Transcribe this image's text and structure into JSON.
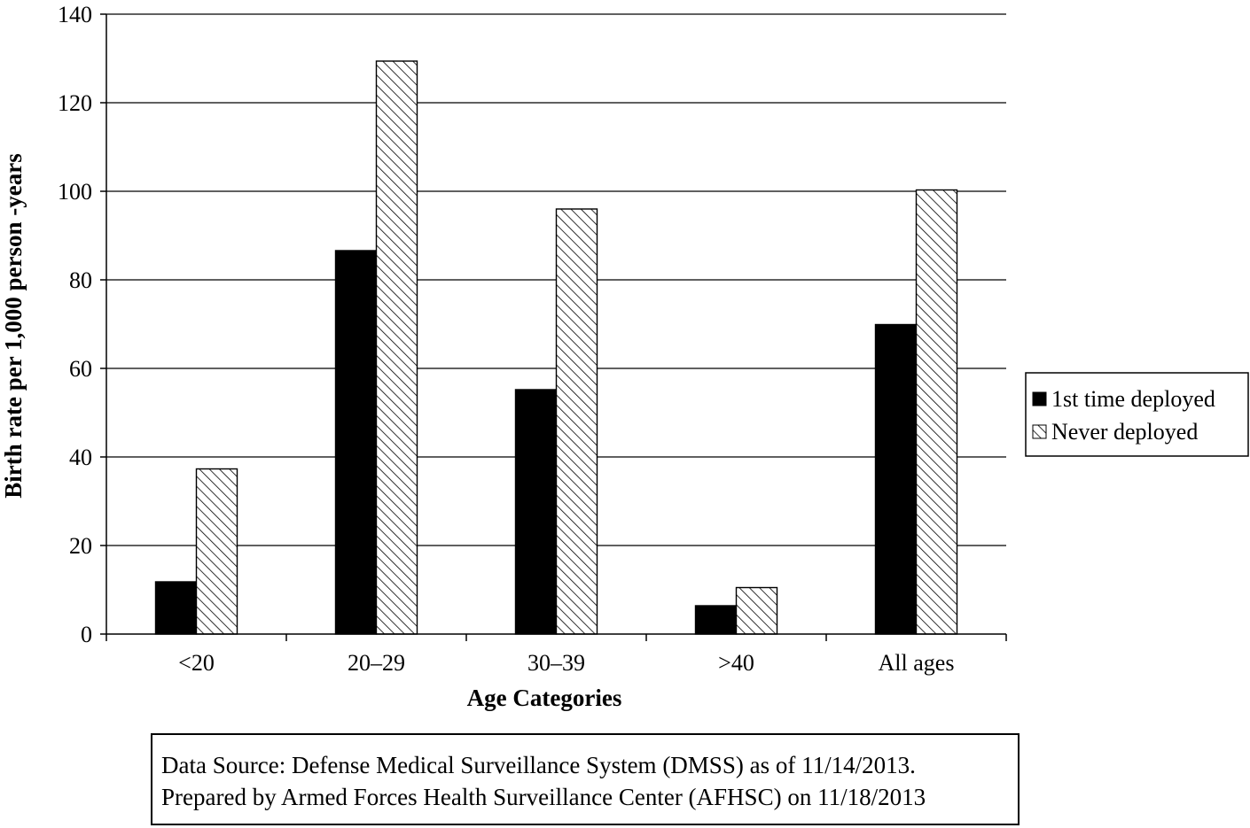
{
  "chart_data": {
    "type": "bar",
    "title": "",
    "xlabel": "Age Categories",
    "ylabel": "Birth rate per 1,000 person -years",
    "ylim": [
      0,
      140
    ],
    "yticks": [
      "0",
      "20",
      "40",
      "60",
      "80",
      "100",
      "120",
      "140"
    ],
    "grid": true,
    "legend_position": "right",
    "categories": [
      "<20",
      "20–29",
      "30–39",
      ">40",
      "All ages"
    ],
    "series": [
      {
        "name": "1st time deployed",
        "values": [
          11.8,
          86.6,
          55.2,
          6.4,
          69.9
        ],
        "fill": "solid",
        "color": "#000000"
      },
      {
        "name": "Never deployed",
        "values": [
          37.3,
          129.4,
          96.0,
          10.5,
          100.3
        ],
        "fill": "hatch",
        "color": "#000000"
      }
    ]
  },
  "source_note": {
    "line1": "Data Source: Defense Medical Surveillance System (DMSS) as of 11/14/2013.",
    "line2": "Prepared by Armed Forces Health Surveillance Center (AFHSC) on 11/18/2013"
  }
}
